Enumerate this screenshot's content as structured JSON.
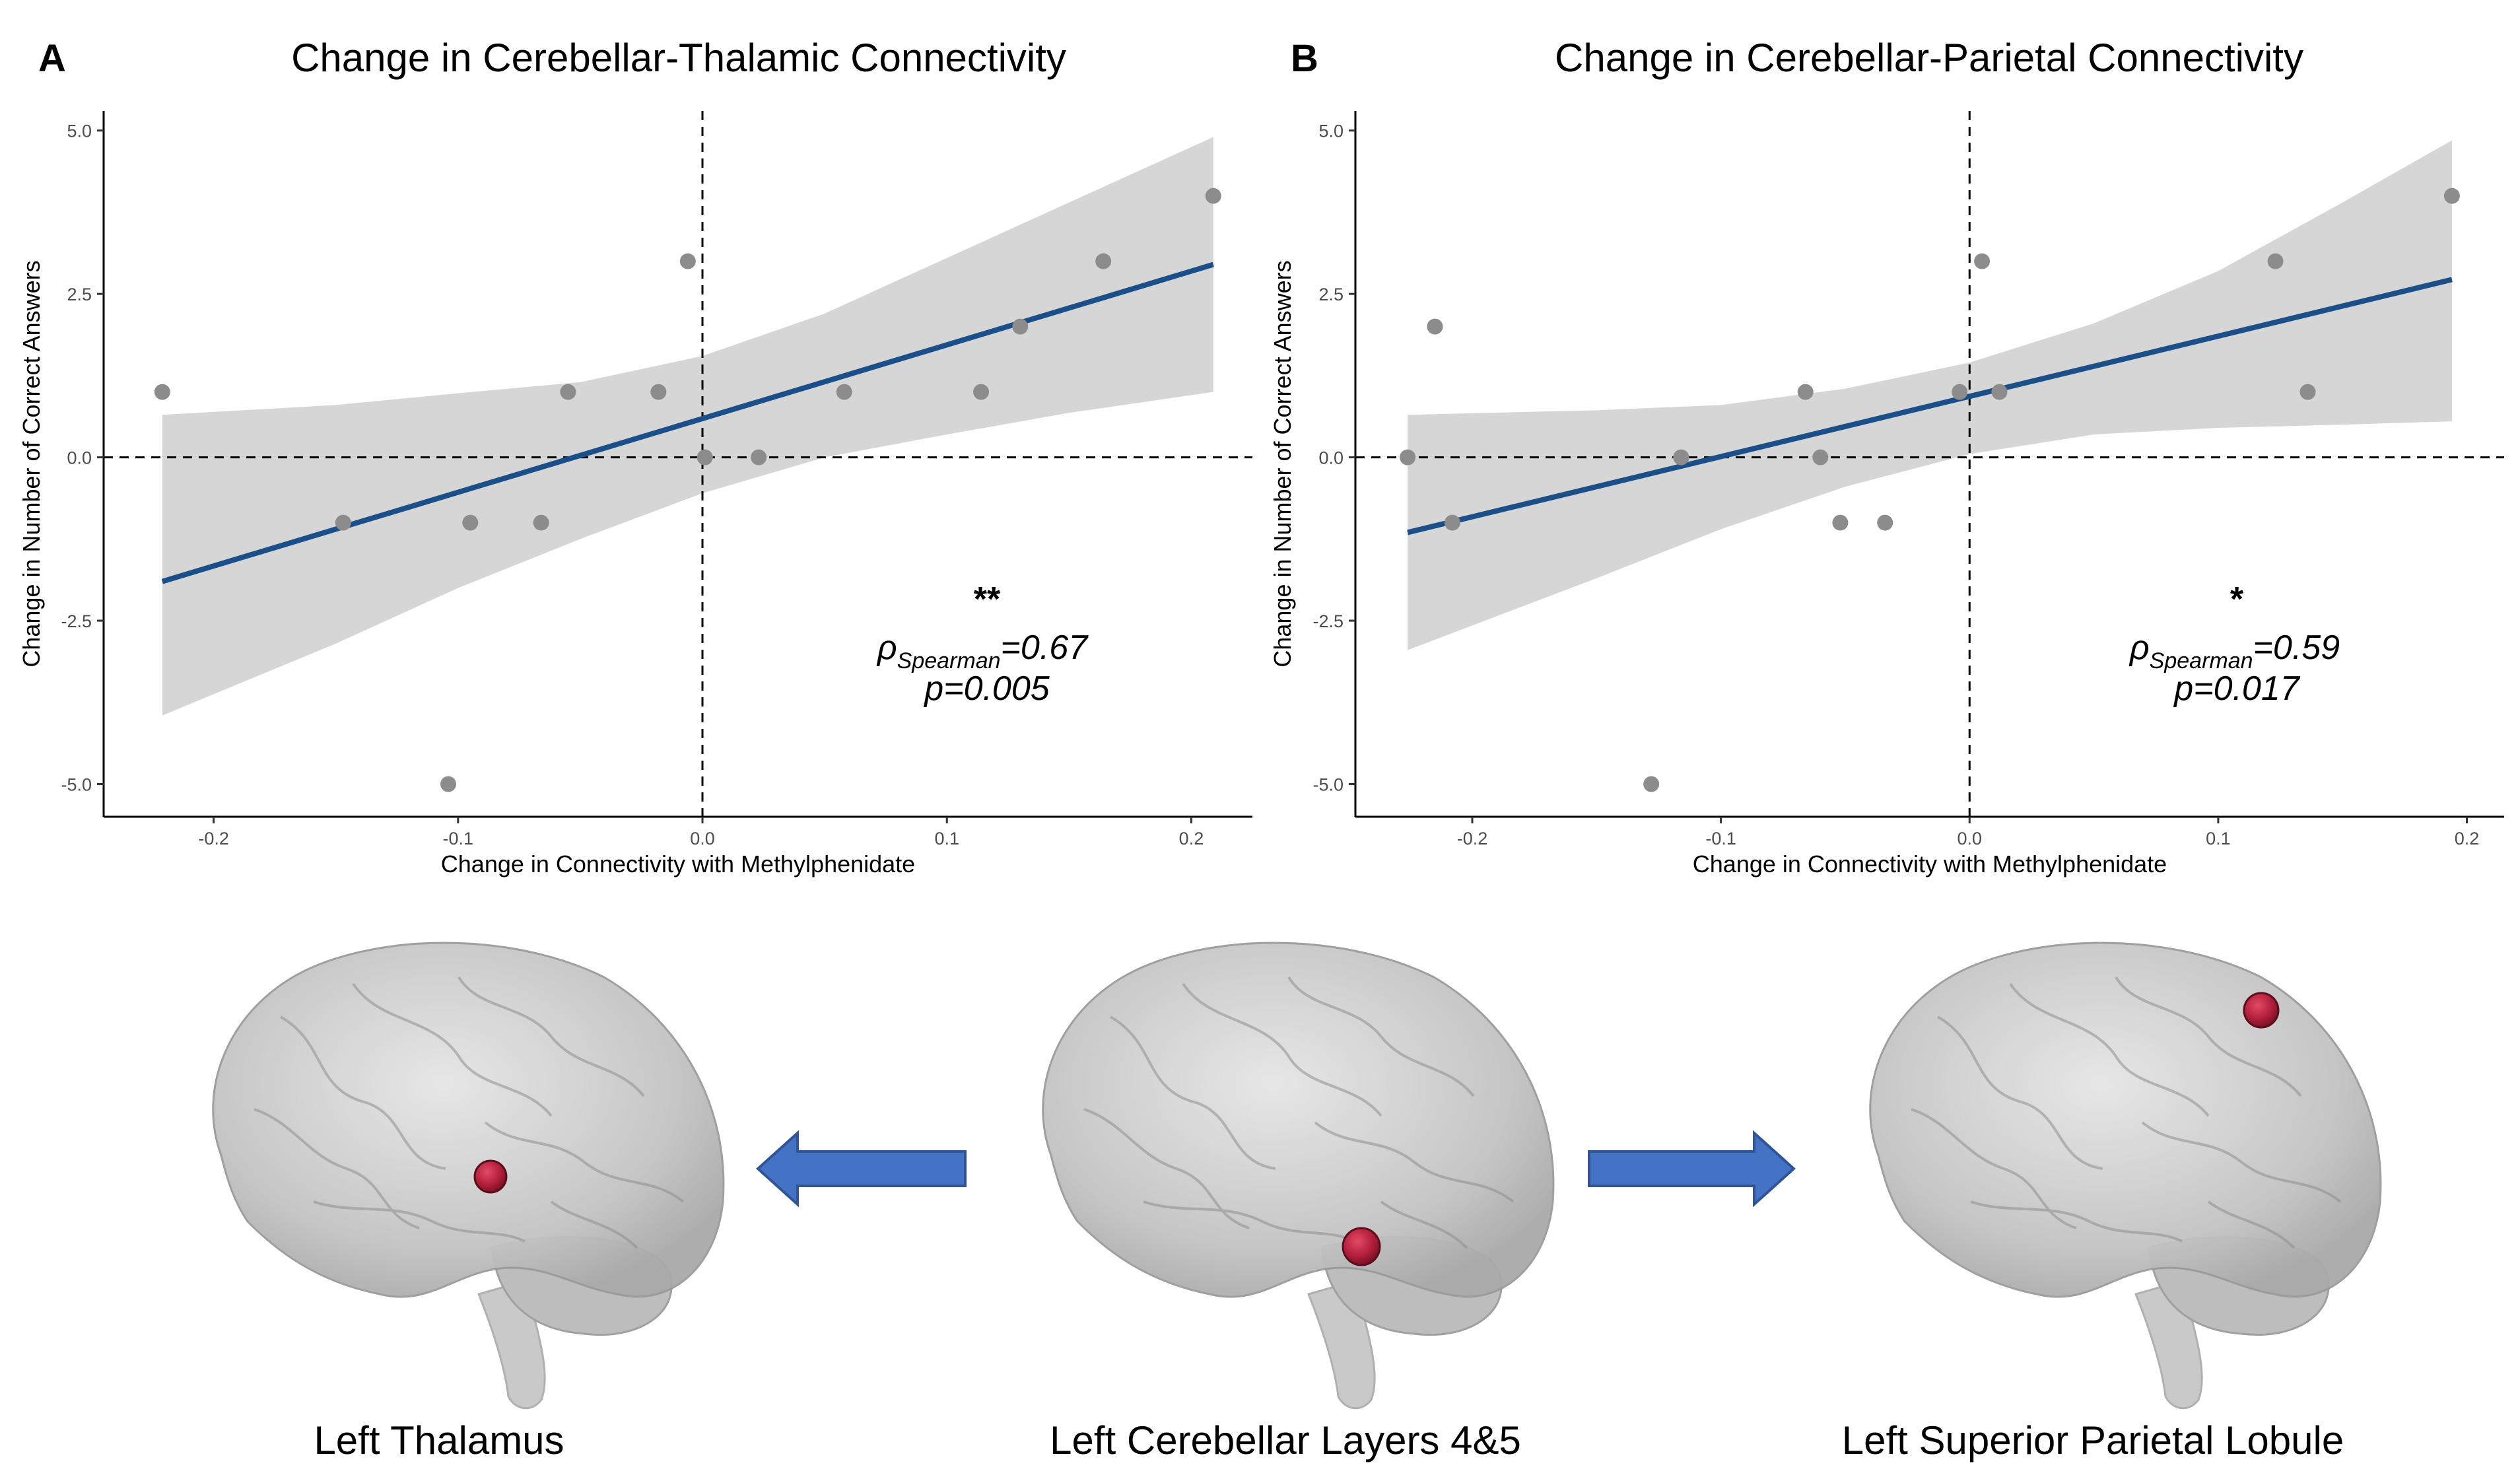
{
  "chart_data": [
    {
      "type": "scatter",
      "panel": "A",
      "title": "Change in Cerebellar-Thalamic Connectivity",
      "xlabel": "Change in Connectivity with Methylphenidate",
      "ylabel": "Change in Number of Correct Answers",
      "xlim": [
        -0.245,
        0.225
      ],
      "ylim": [
        -5.5,
        5.3
      ],
      "xticks": [
        -0.2,
        -0.1,
        0.0,
        0.1,
        0.2
      ],
      "xtick_labels": [
        "-0.2",
        "-0.1",
        "0.0",
        "0.1",
        "0.2"
      ],
      "yticks": [
        5.0,
        2.5,
        0.0,
        -2.5,
        -5.0
      ],
      "ytick_labels": [
        "5.0",
        "2.5",
        "0.0",
        "-2.5",
        "-5.0"
      ],
      "points": [
        {
          "x": -0.221,
          "y": 1
        },
        {
          "x": -0.147,
          "y": -1
        },
        {
          "x": -0.104,
          "y": -5
        },
        {
          "x": -0.095,
          "y": -1
        },
        {
          "x": -0.066,
          "y": -1
        },
        {
          "x": -0.055,
          "y": 1
        },
        {
          "x": -0.018,
          "y": 1
        },
        {
          "x": -0.006,
          "y": 3
        },
        {
          "x": 0.001,
          "y": 0
        },
        {
          "x": 0.023,
          "y": 0
        },
        {
          "x": 0.058,
          "y": 1
        },
        {
          "x": 0.114,
          "y": 1
        },
        {
          "x": 0.13,
          "y": 2
        },
        {
          "x": 0.164,
          "y": 3
        },
        {
          "x": 0.209,
          "y": 4
        }
      ],
      "fit": {
        "x": [
          -0.221,
          0.209
        ],
        "y": [
          -1.9,
          2.95
        ]
      },
      "ci_band": {
        "x": [
          -0.221,
          -0.15,
          -0.1,
          -0.05,
          0.0,
          0.05,
          0.1,
          0.15,
          0.209
        ],
        "upper": [
          0.65,
          0.8,
          0.98,
          1.15,
          1.55,
          2.2,
          3.05,
          3.9,
          4.9
        ],
        "lower": [
          -3.95,
          -2.85,
          -2.0,
          -1.25,
          -0.55,
          0.0,
          0.35,
          0.68,
          1.0
        ]
      },
      "reference_lines": {
        "x": 0.0,
        "y": 0.0
      },
      "annotation": {
        "significance": "**",
        "rho_symbol": "ρ",
        "rho_subscript": "Spearman",
        "rho_value": "=0.67",
        "p_text": "p=0.005"
      },
      "colors": {
        "points": "#8c8c8c",
        "fit": "#1b4f8a",
        "band": "#d6d6d6"
      }
    },
    {
      "type": "scatter",
      "panel": "B",
      "title": "Change in Cerebellar-Parietal Connectivity",
      "xlabel": "Change in Connectivity with Methylphenidate",
      "ylabel": "Change in Number of Correct Answers",
      "xlim": [
        -0.247,
        0.215
      ],
      "ylim": [
        -5.5,
        5.3
      ],
      "xticks": [
        -0.2,
        -0.1,
        0.0,
        0.1,
        0.2
      ],
      "xtick_labels": [
        "-0.2",
        "-0.1",
        "0.0",
        "0.1",
        "0.2"
      ],
      "yticks": [
        5.0,
        2.5,
        0.0,
        -2.5,
        -5.0
      ],
      "ytick_labels": [
        "5.0",
        "2.5",
        "0.0",
        "-2.5",
        "-5.0"
      ],
      "points": [
        {
          "x": -0.226,
          "y": 0
        },
        {
          "x": -0.215,
          "y": 2
        },
        {
          "x": -0.208,
          "y": -1
        },
        {
          "x": -0.128,
          "y": -5
        },
        {
          "x": -0.116,
          "y": 0
        },
        {
          "x": -0.066,
          "y": 1
        },
        {
          "x": -0.06,
          "y": 0
        },
        {
          "x": -0.052,
          "y": -1
        },
        {
          "x": -0.034,
          "y": -1
        },
        {
          "x": -0.004,
          "y": 1
        },
        {
          "x": 0.005,
          "y": 3
        },
        {
          "x": 0.012,
          "y": 1
        },
        {
          "x": 0.123,
          "y": 3
        },
        {
          "x": 0.136,
          "y": 1
        },
        {
          "x": 0.194,
          "y": 4
        }
      ],
      "fit": {
        "x": [
          -0.226,
          0.194
        ],
        "y": [
          -1.15,
          2.72
        ]
      },
      "ci_band": {
        "x": [
          -0.226,
          -0.15,
          -0.1,
          -0.05,
          0.0,
          0.05,
          0.1,
          0.15,
          0.194
        ],
        "upper": [
          0.65,
          0.72,
          0.8,
          1.05,
          1.45,
          2.05,
          2.85,
          3.9,
          4.85
        ],
        "lower": [
          -2.95,
          -1.85,
          -1.1,
          -0.45,
          0.05,
          0.35,
          0.45,
          0.5,
          0.55
        ]
      },
      "reference_lines": {
        "x": 0.0,
        "y": 0.0
      },
      "annotation": {
        "significance": "*",
        "rho_symbol": "ρ",
        "rho_subscript": "Spearman",
        "rho_value": "=0.59",
        "p_text": "p=0.017"
      },
      "colors": {
        "points": "#8c8c8c",
        "fit": "#1b4f8a",
        "band": "#d6d6d6"
      }
    }
  ],
  "brains": {
    "left": {
      "label": "Left Thalamus",
      "marker": "roi-marker"
    },
    "center": {
      "label": "Left Cerebellar Layers 4&5",
      "marker": "roi-marker"
    },
    "right": {
      "label": "Left Superior Parietal Lobule",
      "marker": "roi-marker"
    },
    "arrows": [
      "arrow-left-icon",
      "arrow-right-icon"
    ],
    "colors": {
      "brain": "#c8c8c8",
      "roi": "#b01e3a",
      "arrow": "#4472c4"
    }
  }
}
